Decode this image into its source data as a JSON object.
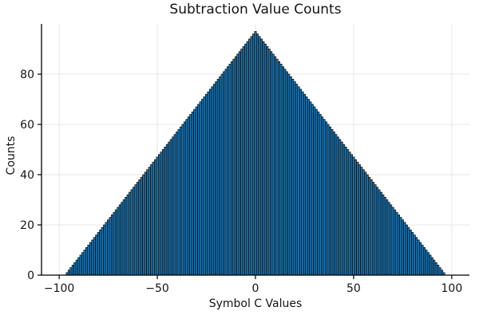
{
  "chart_data": {
    "type": "bar",
    "title": "Subtraction Value Counts",
    "xlabel": "Symbol C Values",
    "ylabel": "Counts",
    "x": [
      -96,
      -95,
      -94,
      -93,
      -92,
      -91,
      -90,
      -89,
      -88,
      -87,
      -86,
      -85,
      -84,
      -83,
      -82,
      -81,
      -80,
      -79,
      -78,
      -77,
      -76,
      -75,
      -74,
      -73,
      -72,
      -71,
      -70,
      -69,
      -68,
      -67,
      -66,
      -65,
      -64,
      -63,
      -62,
      -61,
      -60,
      -59,
      -58,
      -57,
      -56,
      -55,
      -54,
      -53,
      -52,
      -51,
      -50,
      -49,
      -48,
      -47,
      -46,
      -45,
      -44,
      -43,
      -42,
      -41,
      -40,
      -39,
      -38,
      -37,
      -36,
      -35,
      -34,
      -33,
      -32,
      -31,
      -30,
      -29,
      -28,
      -27,
      -26,
      -25,
      -24,
      -23,
      -22,
      -21,
      -20,
      -19,
      -18,
      -17,
      -16,
      -15,
      -14,
      -13,
      -12,
      -11,
      -10,
      -9,
      -8,
      -7,
      -6,
      -5,
      -4,
      -3,
      -2,
      -1,
      0,
      1,
      2,
      3,
      4,
      5,
      6,
      7,
      8,
      9,
      10,
      11,
      12,
      13,
      14,
      15,
      16,
      17,
      18,
      19,
      20,
      21,
      22,
      23,
      24,
      25,
      26,
      27,
      28,
      29,
      30,
      31,
      32,
      33,
      34,
      35,
      36,
      37,
      38,
      39,
      40,
      41,
      42,
      43,
      44,
      45,
      46,
      47,
      48,
      49,
      50,
      51,
      52,
      53,
      54,
      55,
      56,
      57,
      58,
      59,
      60,
      61,
      62,
      63,
      64,
      65,
      66,
      67,
      68,
      69,
      70,
      71,
      72,
      73,
      74,
      75,
      76,
      77,
      78,
      79,
      80,
      81,
      82,
      83,
      84,
      85,
      86,
      87,
      88,
      89,
      90,
      91,
      92,
      93,
      94,
      95,
      96
    ],
    "values": [
      1,
      2,
      3,
      4,
      5,
      6,
      7,
      8,
      9,
      10,
      11,
      12,
      13,
      14,
      15,
      16,
      17,
      18,
      19,
      20,
      21,
      22,
      23,
      24,
      25,
      26,
      27,
      28,
      29,
      30,
      31,
      32,
      33,
      34,
      35,
      36,
      37,
      38,
      39,
      40,
      41,
      42,
      43,
      44,
      45,
      46,
      47,
      48,
      49,
      50,
      51,
      52,
      53,
      54,
      55,
      56,
      57,
      58,
      59,
      60,
      61,
      62,
      63,
      64,
      65,
      66,
      67,
      68,
      69,
      70,
      71,
      72,
      73,
      74,
      75,
      76,
      77,
      78,
      79,
      80,
      81,
      82,
      83,
      84,
      85,
      86,
      87,
      88,
      89,
      90,
      91,
      92,
      93,
      94,
      95,
      96,
      97,
      96,
      95,
      94,
      93,
      92,
      91,
      90,
      89,
      88,
      87,
      86,
      85,
      84,
      83,
      82,
      81,
      80,
      79,
      78,
      77,
      76,
      75,
      74,
      73,
      72,
      71,
      70,
      69,
      68,
      67,
      66,
      65,
      64,
      63,
      62,
      61,
      60,
      59,
      58,
      57,
      56,
      55,
      54,
      53,
      52,
      51,
      50,
      49,
      48,
      47,
      46,
      45,
      44,
      43,
      42,
      41,
      40,
      39,
      38,
      37,
      36,
      35,
      34,
      33,
      32,
      31,
      30,
      29,
      28,
      27,
      26,
      25,
      24,
      23,
      22,
      21,
      20,
      19,
      18,
      17,
      16,
      15,
      14,
      13,
      12,
      11,
      10,
      9,
      8,
      7,
      6,
      5,
      4,
      3,
      2,
      1
    ],
    "xlim": [
      -109,
      109
    ],
    "ylim": [
      0,
      100
    ],
    "xticks": [
      -100,
      -50,
      0,
      50,
      100
    ],
    "xtick_labels": [
      "−100",
      "−50",
      "0",
      "50",
      "100"
    ],
    "yticks": [
      0,
      20,
      40,
      60,
      80
    ],
    "ytick_labels": [
      "0",
      "20",
      "40",
      "60",
      "80"
    ],
    "grid": true,
    "legend": "none",
    "bar_width": 0.97,
    "colors": {
      "bar_fill": "#1f77b4",
      "bar_edge": "#000000",
      "grid": "#e7e7e7",
      "axis": "#000000",
      "text": "#141414",
      "background": "#ffffff"
    }
  }
}
